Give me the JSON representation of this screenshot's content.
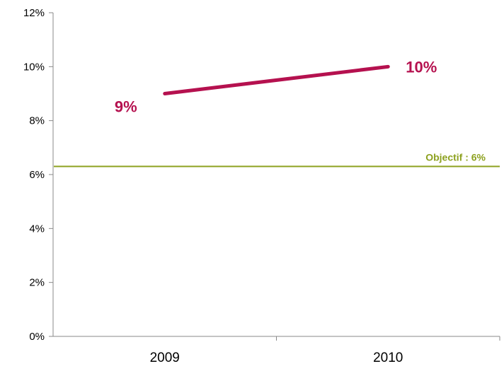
{
  "chart_data": {
    "type": "line",
    "title": "",
    "xlabel": "",
    "ylabel": "",
    "categories": [
      "2009",
      "2010"
    ],
    "series": [
      {
        "values": [
          9,
          10
        ],
        "data_labels": [
          "9%",
          "10%"
        ],
        "color": "#b5114f"
      }
    ],
    "reference_line": {
      "value": 6.3,
      "label": "Objectif : 6%",
      "color": "#8da11f"
    },
    "ylim": [
      0,
      12
    ],
    "y_ticks": [
      0,
      2,
      4,
      6,
      8,
      10,
      12
    ],
    "y_tick_labels": [
      "0%",
      "2%",
      "4%",
      "6%",
      "8%",
      "10%",
      "12%"
    ],
    "grid": false,
    "legend": "none"
  }
}
